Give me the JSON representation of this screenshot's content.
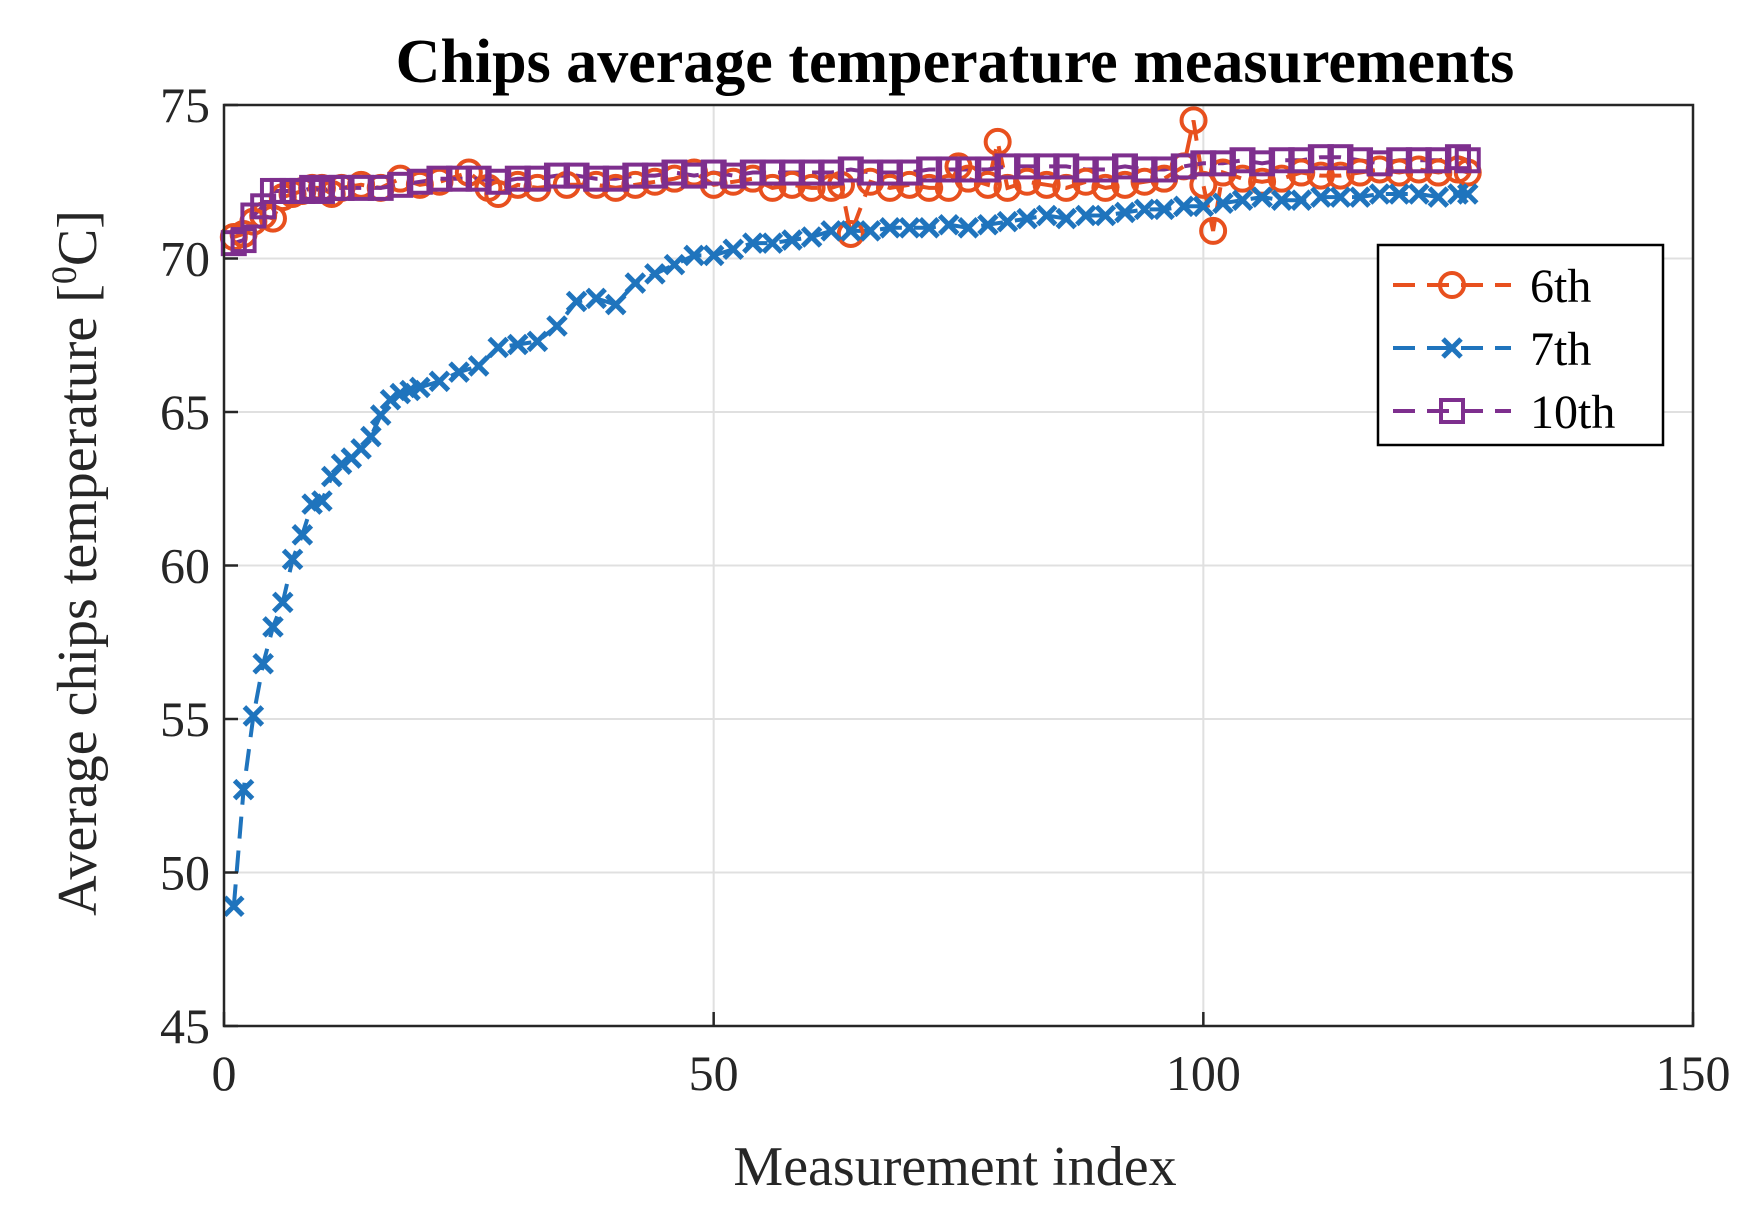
{
  "chart_data": {
    "type": "line",
    "title": "Chips average temperature measurements",
    "xlabel": "Measurement index",
    "ylabel": {
      "main": "Average chips temperature [",
      "sup": "0",
      "unit": "C]"
    },
    "xlim": [
      0,
      150
    ],
    "ylim": [
      45,
      75
    ],
    "xticks": [
      0,
      50,
      100,
      150
    ],
    "yticks": [
      45,
      50,
      55,
      60,
      65,
      70,
      75
    ],
    "grid": true,
    "legend_position": "top-right",
    "series": [
      {
        "name": "6th",
        "color": "#e8501e",
        "marker": "circle",
        "linestyle": "dashed",
        "x": [
          1,
          2,
          3,
          4,
          5,
          6,
          7,
          8,
          9,
          10,
          11,
          12,
          14,
          16,
          18,
          20,
          22,
          25,
          27,
          28,
          30,
          32,
          35,
          38,
          40,
          42,
          44,
          46,
          48,
          50,
          52,
          54,
          56,
          58,
          60,
          62,
          63,
          64,
          66,
          68,
          70,
          72,
          74,
          75,
          76,
          78,
          79,
          80,
          82,
          84,
          86,
          88,
          90,
          92,
          94,
          96,
          98,
          99,
          100,
          101,
          102,
          104,
          106,
          108,
          110,
          112,
          114,
          116,
          118,
          120,
          122,
          124,
          126,
          127
        ],
        "y": [
          70.7,
          70.8,
          71.2,
          71.4,
          71.3,
          72.0,
          72.1,
          72.2,
          72.3,
          72.3,
          72.1,
          72.3,
          72.4,
          72.3,
          72.6,
          72.4,
          72.5,
          72.8,
          72.3,
          72.1,
          72.4,
          72.3,
          72.4,
          72.4,
          72.3,
          72.4,
          72.5,
          72.6,
          72.8,
          72.4,
          72.5,
          72.6,
          72.3,
          72.4,
          72.3,
          72.3,
          72.4,
          70.8,
          72.5,
          72.3,
          72.4,
          72.3,
          72.3,
          73.0,
          72.6,
          72.4,
          73.8,
          72.3,
          72.5,
          72.4,
          72.3,
          72.5,
          72.3,
          72.4,
          72.5,
          72.6,
          73.0,
          74.5,
          72.4,
          70.9,
          72.8,
          72.6,
          72.5,
          72.6,
          72.8,
          72.7,
          72.7,
          72.8,
          72.9,
          72.8,
          72.9,
          72.8,
          72.9,
          72.8
        ]
      },
      {
        "name": "7th",
        "color": "#1f74bd",
        "marker": "x",
        "linestyle": "dashed",
        "x": [
          1,
          2,
          3,
          4,
          5,
          6,
          7,
          8,
          9,
          10,
          11,
          12,
          13,
          14,
          15,
          16,
          17,
          18,
          19,
          20,
          22,
          24,
          26,
          28,
          30,
          32,
          34,
          36,
          38,
          40,
          42,
          44,
          46,
          48,
          50,
          52,
          54,
          56,
          58,
          60,
          62,
          64,
          66,
          68,
          70,
          72,
          74,
          76,
          78,
          80,
          82,
          84,
          86,
          88,
          90,
          92,
          94,
          96,
          98,
          100,
          102,
          104,
          106,
          108,
          110,
          112,
          114,
          116,
          118,
          120,
          122,
          124,
          126,
          127
        ],
        "y": [
          48.9,
          52.7,
          55.1,
          56.8,
          58.0,
          58.8,
          60.2,
          61.0,
          62.0,
          62.1,
          62.9,
          63.3,
          63.5,
          63.8,
          64.2,
          64.9,
          65.4,
          65.6,
          65.7,
          65.8,
          66.0,
          66.3,
          66.5,
          67.1,
          67.2,
          67.3,
          67.8,
          68.6,
          68.7,
          68.5,
          69.2,
          69.5,
          69.8,
          70.1,
          70.1,
          70.3,
          70.5,
          70.5,
          70.6,
          70.7,
          70.9,
          70.9,
          70.9,
          71.0,
          71.0,
          71.0,
          71.1,
          71.0,
          71.1,
          71.2,
          71.3,
          71.4,
          71.3,
          71.4,
          71.4,
          71.5,
          71.6,
          71.6,
          71.7,
          71.7,
          71.8,
          71.9,
          72.0,
          71.9,
          71.9,
          72.0,
          72.0,
          72.0,
          72.1,
          72.1,
          72.1,
          72.0,
          72.1,
          72.1
        ]
      },
      {
        "name": "10th",
        "color": "#7e2f8e",
        "marker": "square",
        "linestyle": "dashed",
        "x": [
          1,
          2,
          3,
          4,
          5,
          6,
          7,
          8,
          9,
          10,
          11,
          12,
          14,
          16,
          18,
          20,
          22,
          24,
          26,
          28,
          30,
          32,
          34,
          36,
          38,
          40,
          42,
          44,
          46,
          48,
          50,
          52,
          54,
          56,
          58,
          60,
          62,
          64,
          66,
          68,
          70,
          72,
          74,
          76,
          78,
          80,
          82,
          84,
          86,
          88,
          90,
          92,
          94,
          96,
          98,
          100,
          102,
          104,
          106,
          108,
          110,
          112,
          114,
          116,
          118,
          120,
          122,
          124,
          126,
          127
        ],
        "y": [
          70.5,
          70.6,
          71.4,
          71.7,
          72.2,
          72.2,
          72.2,
          72.2,
          72.3,
          72.2,
          72.3,
          72.3,
          72.3,
          72.3,
          72.4,
          72.5,
          72.6,
          72.6,
          72.6,
          72.5,
          72.6,
          72.6,
          72.7,
          72.7,
          72.6,
          72.6,
          72.7,
          72.7,
          72.8,
          72.7,
          72.8,
          72.7,
          72.8,
          72.8,
          72.8,
          72.8,
          72.8,
          72.9,
          72.8,
          72.8,
          72.8,
          72.9,
          72.9,
          72.9,
          72.9,
          73.0,
          73.0,
          73.0,
          73.0,
          72.9,
          72.9,
          73.0,
          72.9,
          72.9,
          73.0,
          73.1,
          73.1,
          73.2,
          73.1,
          73.2,
          73.2,
          73.3,
          73.3,
          73.2,
          73.1,
          73.2,
          73.2,
          73.2,
          73.3,
          73.2
        ]
      }
    ]
  }
}
